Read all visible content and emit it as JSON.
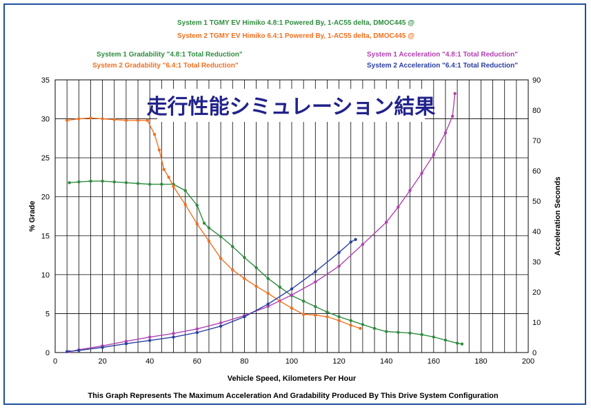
{
  "chart_data": {
    "type": "line",
    "header_lines": [
      {
        "text": "System 1 TGMY EV Himiko  4.8:1 Powered By, 1-AC55 delta, DMOC445 @",
        "color": "#2e8b3e"
      },
      {
        "text": "System 2 TGMY EV Himiko  6.4:1 Powered By, 1-AC55 delta, DMOC445 @",
        "color": "#f07020"
      }
    ],
    "legend_left": [
      {
        "text": "System 1 Gradability \"4.8:1 Total Reduction\"",
        "color": "#2e8b3e"
      },
      {
        "text": "System 2 Gradability \"6.4:1 Total Reduction\"",
        "color": "#f07020"
      }
    ],
    "legend_right": [
      {
        "text": "System 1 Acceleration \"4.8:1 Total Reduction\"",
        "color": "#b040b0"
      },
      {
        "text": "System 2 Acceleration \"6.4:1 Total Reduction\"",
        "color": "#2a3fa0"
      }
    ],
    "title": "走行性能シミュレーション結果",
    "xlabel": "Vehicle Speed, Kilometers Per Hour",
    "ylabel": "% Grade",
    "y2label": "Acceleration Seconds",
    "caption": "This Graph Represents The Maximum Acceleration And Gradability Produced By This Drive System Configuration",
    "xlim": [
      0,
      200
    ],
    "ylim": [
      0,
      35
    ],
    "y2lim": [
      0,
      90
    ],
    "xticks": [
      0,
      20,
      40,
      60,
      80,
      100,
      120,
      140,
      160,
      180,
      200
    ],
    "yticks": [
      0,
      5,
      10,
      15,
      20,
      25,
      30,
      35
    ],
    "y2ticks": [
      0,
      10,
      20,
      30,
      40,
      50,
      60,
      70,
      80,
      90
    ],
    "grid": true,
    "series": [
      {
        "name": "System 1 Gradability \"4.8:1 Total Reduction\"",
        "axis": "left",
        "color": "#2e8b3e",
        "x": [
          6,
          10,
          15,
          20,
          25,
          30,
          35,
          40,
          45,
          50,
          55,
          60,
          63,
          65,
          70,
          75,
          80,
          85,
          90,
          95,
          100,
          105,
          110,
          115,
          120,
          125,
          130,
          135,
          140,
          145,
          150,
          155,
          160,
          165,
          170,
          172
        ],
        "y": [
          21.8,
          21.9,
          22.0,
          22.0,
          21.9,
          21.8,
          21.7,
          21.6,
          21.6,
          21.6,
          20.8,
          18.9,
          16.6,
          16.0,
          14.9,
          13.6,
          12.2,
          10.9,
          9.5,
          8.4,
          7.3,
          6.6,
          5.9,
          5.2,
          4.6,
          4.1,
          3.6,
          3.1,
          2.7,
          2.6,
          2.5,
          2.3,
          2.0,
          1.6,
          1.2,
          1.1
        ]
      },
      {
        "name": "System 2 Gradability \"6.4:1 Total Reduction\"",
        "axis": "left",
        "color": "#f07020",
        "x": [
          5,
          10,
          15,
          20,
          25,
          30,
          35,
          39,
          42,
          44,
          46,
          48,
          50,
          55,
          60,
          65,
          70,
          75,
          80,
          85,
          90,
          95,
          100,
          105,
          110,
          115,
          120,
          125,
          129
        ],
        "y": [
          29.8,
          30.0,
          30.1,
          30.0,
          29.9,
          29.8,
          29.8,
          29.8,
          28.0,
          26.0,
          23.5,
          22.5,
          21.3,
          19.0,
          16.5,
          14.3,
          12.1,
          10.6,
          9.5,
          8.5,
          7.6,
          6.6,
          5.7,
          4.9,
          4.8,
          4.6,
          4.1,
          3.5,
          3.1
        ]
      },
      {
        "name": "System 1 Acceleration \"4.8:1 Total Reduction\"",
        "axis": "right",
        "color": "#b040b0",
        "x": [
          6,
          10,
          20,
          30,
          40,
          50,
          60,
          70,
          80,
          90,
          100,
          110,
          120,
          130,
          140,
          145,
          150,
          155,
          160,
          165,
          168,
          169
        ],
        "y": [
          0.3,
          0.9,
          2.2,
          3.7,
          5.1,
          6.3,
          7.8,
          9.8,
          12.2,
          15.2,
          19.0,
          23.3,
          28.5,
          35.7,
          43.0,
          48.0,
          53.5,
          59.2,
          65.3,
          72.5,
          78.0,
          85.5
        ]
      },
      {
        "name": "System 2 Acceleration \"6.4:1 Total Reduction\"",
        "axis": "right",
        "color": "#2a3fa0",
        "x": [
          5,
          10,
          20,
          30,
          40,
          50,
          60,
          70,
          80,
          90,
          100,
          110,
          120,
          125,
          127
        ],
        "y": [
          0.3,
          0.7,
          1.7,
          2.9,
          4.0,
          5.1,
          6.6,
          8.7,
          11.8,
          16.0,
          21.0,
          26.7,
          33.0,
          36.5,
          37.3
        ]
      }
    ]
  }
}
